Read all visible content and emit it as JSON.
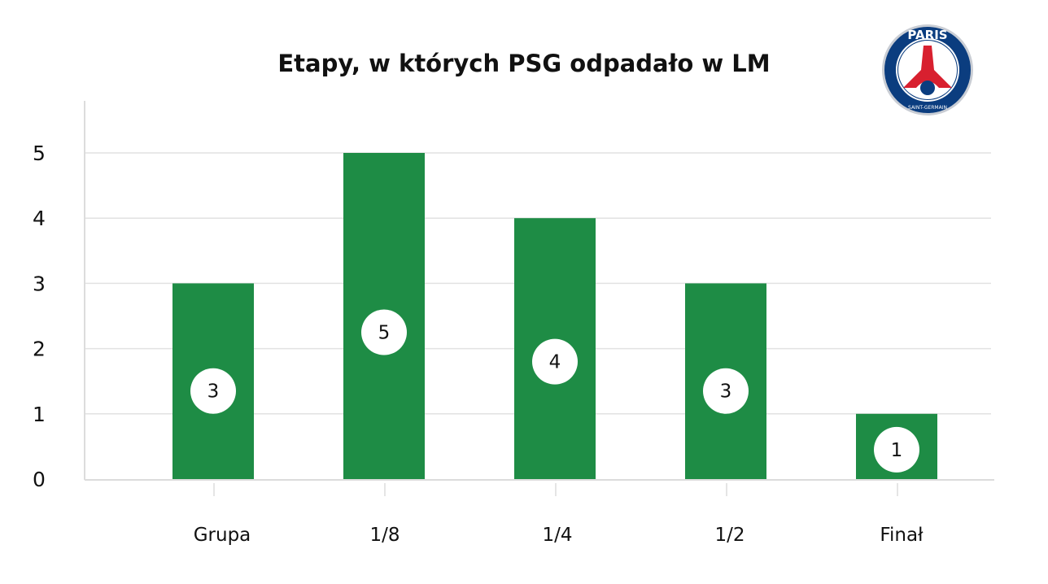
{
  "chart_data": {
    "type": "bar",
    "title": "Etapy, w których PSG odpadało w LM",
    "categories": [
      "Grupa",
      "1/8",
      "1/4",
      "1/2",
      "Finał"
    ],
    "values": [
      3,
      5,
      4,
      3,
      1
    ],
    "xlabel": "",
    "ylabel": "",
    "ylim": [
      0,
      5.8
    ],
    "yticks": [
      0,
      1,
      2,
      3,
      4,
      5
    ],
    "grid": true,
    "data_labels": true,
    "colors": {
      "bar": "#1e8c45",
      "grid": "#e2e2e2",
      "label_bg": "#ffffff"
    }
  },
  "logo": {
    "text": "PARIS SAINT-GERMAIN",
    "colors": [
      "#0b3d7f",
      "#d8202f",
      "#ffffff"
    ]
  }
}
